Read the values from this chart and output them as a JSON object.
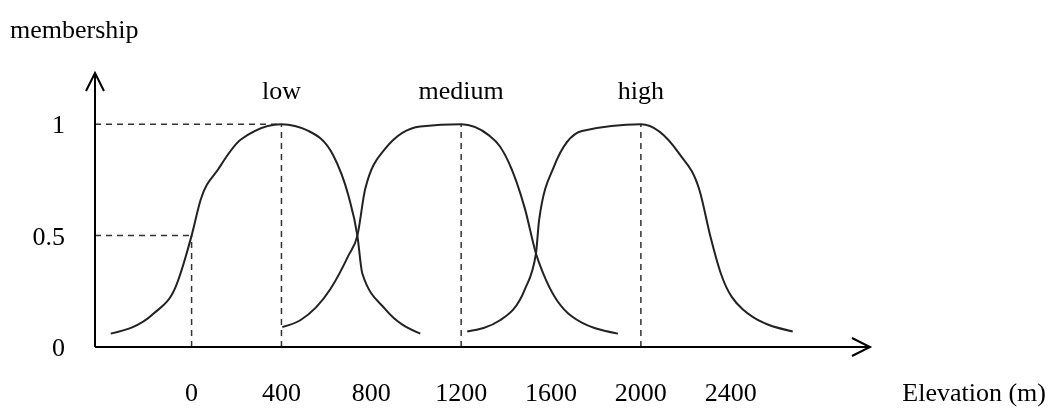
{
  "chart_data": {
    "type": "line",
    "xlabel": "Elevation (m)",
    "ylabel": "membership",
    "xlim": [
      -430,
      3020
    ],
    "ylim": [
      0,
      1.23
    ],
    "xticks": [
      0,
      400,
      800,
      1200,
      1600,
      2000,
      2400
    ],
    "yticks": [
      0,
      0.5,
      1
    ],
    "grid": false,
    "marker": "none",
    "line_style": "solid",
    "series": [
      {
        "name": "low",
        "color": "#222222",
        "x": [
          -360,
          -169,
          -71,
          0,
          40,
          120,
          218,
          400,
          520,
          631,
          698,
          738,
          760,
          862,
          1018
        ],
        "values": [
          0.06,
          0.15,
          0.27,
          0.5,
          0.66,
          0.8,
          0.93,
          1.0,
          0.97,
          0.86,
          0.68,
          0.5,
          0.33,
          0.17,
          0.06
        ]
      },
      {
        "name": "medium",
        "color": "#222222",
        "x": [
          404,
          484,
          618,
          698,
          738,
          773,
          862,
          1018,
          1200,
          1324,
          1373,
          1484,
          1533,
          1578,
          1689,
          1898
        ],
        "values": [
          0.09,
          0.12,
          0.26,
          0.41,
          0.5,
          0.71,
          0.89,
          0.99,
          1.0,
          0.95,
          0.9,
          0.62,
          0.42,
          0.3,
          0.14,
          0.06
        ]
      },
      {
        "name": "high",
        "color": "#222222",
        "x": [
          1227,
          1373,
          1484,
          1533,
          1547,
          1613,
          1738,
          2000,
          2169,
          2262,
          2311,
          2356,
          2453,
          2676
        ],
        "values": [
          0.07,
          0.12,
          0.26,
          0.42,
          0.57,
          0.81,
          0.97,
          1.0,
          0.87,
          0.7,
          0.49,
          0.33,
          0.17,
          0.07
        ]
      }
    ],
    "ref_lines": [
      {
        "axis": "x",
        "value": 0,
        "line_style": "dashed"
      },
      {
        "axis": "x",
        "value": 400,
        "line_style": "dashed"
      },
      {
        "axis": "x",
        "value": 1200,
        "line_style": "dashed"
      },
      {
        "axis": "x",
        "value": 2000,
        "line_style": "dashed"
      },
      {
        "axis": "y",
        "value": 1,
        "line_style": "dashed"
      },
      {
        "axis": "y",
        "value": 0.5,
        "line_style": "dashed"
      }
    ]
  }
}
